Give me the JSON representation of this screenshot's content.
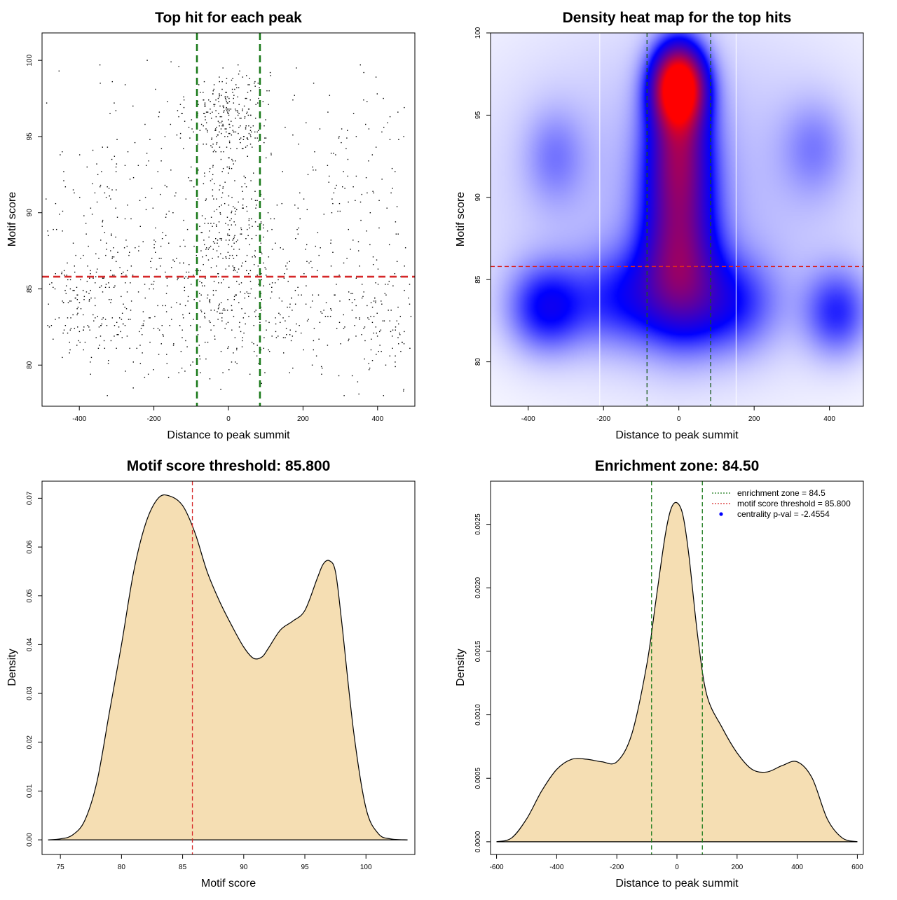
{
  "chart_data": [
    {
      "type": "scatter",
      "title": "Top hit for each peak",
      "xlabel": "Distance to peak summit",
      "ylabel": "Motif score",
      "xlim": [
        -500,
        500
      ],
      "ylim": [
        77.3,
        101.8
      ],
      "xticks": [
        -400,
        -200,
        0,
        200,
        400
      ],
      "yticks": [
        80,
        85,
        90,
        95,
        100
      ],
      "hlines": [
        {
          "y": 85.8,
          "color": "#d62728"
        }
      ],
      "vlines": [
        {
          "x": -84.5,
          "color": "#1a7a1a"
        },
        {
          "x": 84.5,
          "color": "#1a7a1a"
        }
      ],
      "point_clusters": [
        {
          "xc": 0,
          "xsd": 55,
          "yc": 96.5,
          "ysd": 1.6,
          "n": 260
        },
        {
          "xc": 0,
          "xsd": 70,
          "yc": 89.5,
          "ysd": 3.0,
          "n": 230
        },
        {
          "xc": 0,
          "xsd": 210,
          "yc": 84.0,
          "ysd": 2.4,
          "n": 420
        },
        {
          "xc": -380,
          "xsd": 70,
          "yc": 83.5,
          "ysd": 2.2,
          "n": 150
        },
        {
          "xc": 420,
          "xsd": 50,
          "yc": 83.0,
          "ysd": 2.2,
          "n": 110
        },
        {
          "xc": -330,
          "xsd": 110,
          "yc": 91.5,
          "ysd": 3.5,
          "n": 110
        },
        {
          "xc": 350,
          "xsd": 100,
          "yc": 92.0,
          "ysd": 3.5,
          "n": 110
        },
        {
          "xc": 0,
          "xsd": 290,
          "yc": 89.0,
          "ysd": 5.5,
          "n": 130
        }
      ]
    },
    {
      "type": "heatmap",
      "title": "Density heat map for the top hits",
      "xlabel": "Distance to peak summit",
      "ylabel": "Motif score",
      "xlim": [
        -500,
        490
      ],
      "ylim": [
        77.3,
        100.0
      ],
      "xticks": [
        -400,
        -200,
        0,
        200,
        400
      ],
      "yticks": [
        80,
        85,
        90,
        95,
        100
      ],
      "hlines": [
        {
          "y": 85.8,
          "color": "#d62728"
        }
      ],
      "vlines": [
        {
          "x": -84.5,
          "color": "#1a5a1a"
        },
        {
          "x": 84.5,
          "color": "#1a5a1a"
        }
      ],
      "grid_vlines": [
        -210,
        152
      ],
      "colors": [
        "#ffffff",
        "#0000ff",
        "#ff0000"
      ],
      "density_blobs": [
        {
          "x": 0,
          "y": 96.8,
          "sx": 45,
          "sy": 1.6,
          "w": 1.0
        },
        {
          "x": 0,
          "y": 93.5,
          "sx": 55,
          "sy": 3.0,
          "w": 0.45
        },
        {
          "x": 0,
          "y": 88.5,
          "sx": 65,
          "sy": 3.5,
          "w": 0.35
        },
        {
          "x": 0,
          "y": 85.0,
          "sx": 75,
          "sy": 2.5,
          "w": 0.28
        },
        {
          "x": -350,
          "y": 83.3,
          "sx": 70,
          "sy": 1.8,
          "w": 0.27
        },
        {
          "x": 420,
          "y": 83.0,
          "sx": 60,
          "sy": 1.8,
          "w": 0.22
        },
        {
          "x": 130,
          "y": 83.5,
          "sx": 90,
          "sy": 2.0,
          "w": 0.22
        },
        {
          "x": -150,
          "y": 83.8,
          "sx": 90,
          "sy": 2.0,
          "w": 0.2
        },
        {
          "x": -330,
          "y": 92.5,
          "sx": 55,
          "sy": 2.0,
          "w": 0.1
        },
        {
          "x": 360,
          "y": 93.0,
          "sx": 60,
          "sy": 2.0,
          "w": 0.1
        },
        {
          "x": 0,
          "y": 90,
          "sx": 420,
          "sy": 8.0,
          "w": 0.09
        }
      ]
    },
    {
      "type": "area",
      "title": "Motif score threshold: 85.800",
      "xlabel": "Motif score",
      "ylabel": "Density",
      "xlim": [
        73.5,
        104.0
      ],
      "ylim": [
        -0.003,
        0.0735
      ],
      "xticks": [
        75,
        80,
        85,
        90,
        95,
        100
      ],
      "yticks": [
        "0.00",
        "0.01",
        "0.02",
        "0.03",
        "0.04",
        "0.05",
        "0.06",
        "0.07"
      ],
      "fill": "#f5deb3",
      "vlines": [
        {
          "x": 85.8,
          "color": "#d62728"
        }
      ],
      "x": [
        74,
        75,
        76,
        77,
        78,
        79,
        80,
        81,
        82,
        83,
        83.9,
        85,
        86,
        87,
        88,
        89,
        90,
        90.8,
        91.5,
        92,
        93,
        94,
        95,
        96,
        96.5,
        97,
        97.5,
        98,
        99,
        100,
        101,
        102,
        103.4
      ],
      "y": [
        0.0,
        0.0002,
        0.001,
        0.004,
        0.012,
        0.026,
        0.04,
        0.055,
        0.065,
        0.07,
        0.0705,
        0.0685,
        0.063,
        0.055,
        0.049,
        0.044,
        0.0395,
        0.0372,
        0.0375,
        0.0392,
        0.043,
        0.0448,
        0.047,
        0.0535,
        0.0565,
        0.0572,
        0.055,
        0.045,
        0.022,
        0.0065,
        0.0013,
        0.0002,
        0.0
      ]
    },
    {
      "type": "area",
      "title": "Enrichment zone: 84.50",
      "xlabel": "Distance to peak summit",
      "ylabel": "Density",
      "xlim": [
        -620,
        620
      ],
      "ylim": [
        -0.0001,
        0.00284
      ],
      "xticks": [
        -600,
        -400,
        -200,
        0,
        200,
        400,
        600
      ],
      "yticks": [
        "0.0000",
        "0.0005",
        "0.0010",
        "0.0015",
        "0.0020",
        "0.0025"
      ],
      "fill": "#f5deb3",
      "vlines": [
        {
          "x": -84.5,
          "color": "#1a7a1a"
        },
        {
          "x": 84.5,
          "color": "#1a7a1a"
        }
      ],
      "x": [
        -600,
        -550,
        -500,
        -450,
        -400,
        -350,
        -300,
        -250,
        -200,
        -150,
        -100,
        -70,
        -40,
        -20,
        0,
        20,
        40,
        70,
        100,
        150,
        200,
        250,
        300,
        350,
        400,
        450,
        500,
        550,
        600
      ],
      "y": [
        0.0,
        3e-05,
        0.00018,
        0.0004,
        0.00057,
        0.00065,
        0.00065,
        0.00063,
        0.00063,
        0.00085,
        0.0014,
        0.0019,
        0.0024,
        0.00262,
        0.00267,
        0.00257,
        0.00225,
        0.0016,
        0.00115,
        0.0009,
        0.0007,
        0.00057,
        0.00055,
        0.0006,
        0.00063,
        0.0005,
        0.00018,
        3e-05,
        0.0
      ],
      "legend": {
        "position": "top-right",
        "entries": [
          {
            "label": "enrichment zone = 84.5",
            "color": "#1a7a1a",
            "style": "dotted-line"
          },
          {
            "label": "motif score threshold = 85.800",
            "color": "#d62728",
            "style": "dotted-line"
          },
          {
            "label": "centrality p-val = -2.4554",
            "color": "#0000ff",
            "style": "point"
          }
        ]
      }
    }
  ]
}
